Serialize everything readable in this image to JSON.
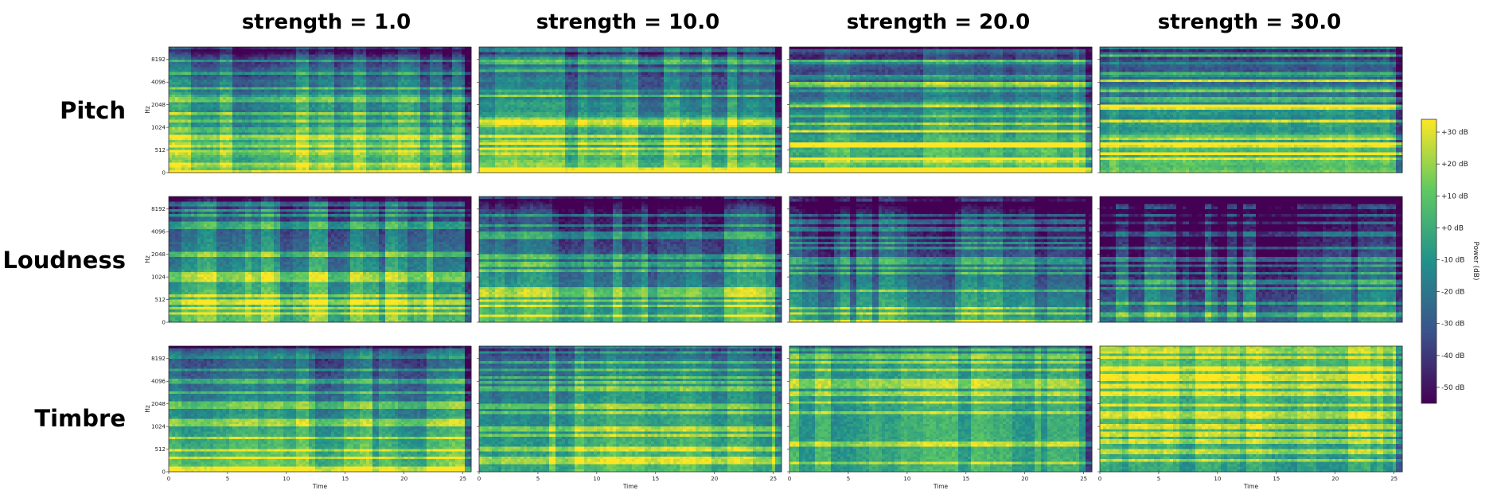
{
  "chart_data": {
    "type": "heatmap",
    "description_kind": "spectrogram grid",
    "columns": [
      {
        "title": "strength = 1.0",
        "strength": 1.0
      },
      {
        "title": "strength = 10.0",
        "strength": 10.0
      },
      {
        "title": "strength = 20.0",
        "strength": 20.0
      },
      {
        "title": "strength = 30.0",
        "strength": 30.0
      }
    ],
    "rows": [
      {
        "label": "Pitch"
      },
      {
        "label": "Loudness"
      },
      {
        "label": "Timbre"
      }
    ],
    "ylabel": "Hz",
    "xlabel": "Time",
    "yticks": [
      "0",
      "512",
      "1024",
      "2048",
      "4096",
      "8192"
    ],
    "xticks": [
      "0",
      "5",
      "10",
      "15",
      "20",
      "25"
    ],
    "xlim": [
      0,
      25.7
    ],
    "colorbar": {
      "label": "Power (dB)",
      "ticks": [
        "+30 dB",
        "+20 dB",
        "+10 dB",
        "+0 dB",
        "-10 dB",
        "-20 dB",
        "-30 dB",
        "-40 dB",
        "-50 dB"
      ],
      "values": [
        30,
        20,
        10,
        0,
        -10,
        -20,
        -30,
        -40,
        -50
      ],
      "range": [
        -55,
        34
      ],
      "colormap": "viridis",
      "colors": [
        "#440154",
        "#3b528b",
        "#21918c",
        "#5ec962",
        "#fde725"
      ]
    }
  }
}
